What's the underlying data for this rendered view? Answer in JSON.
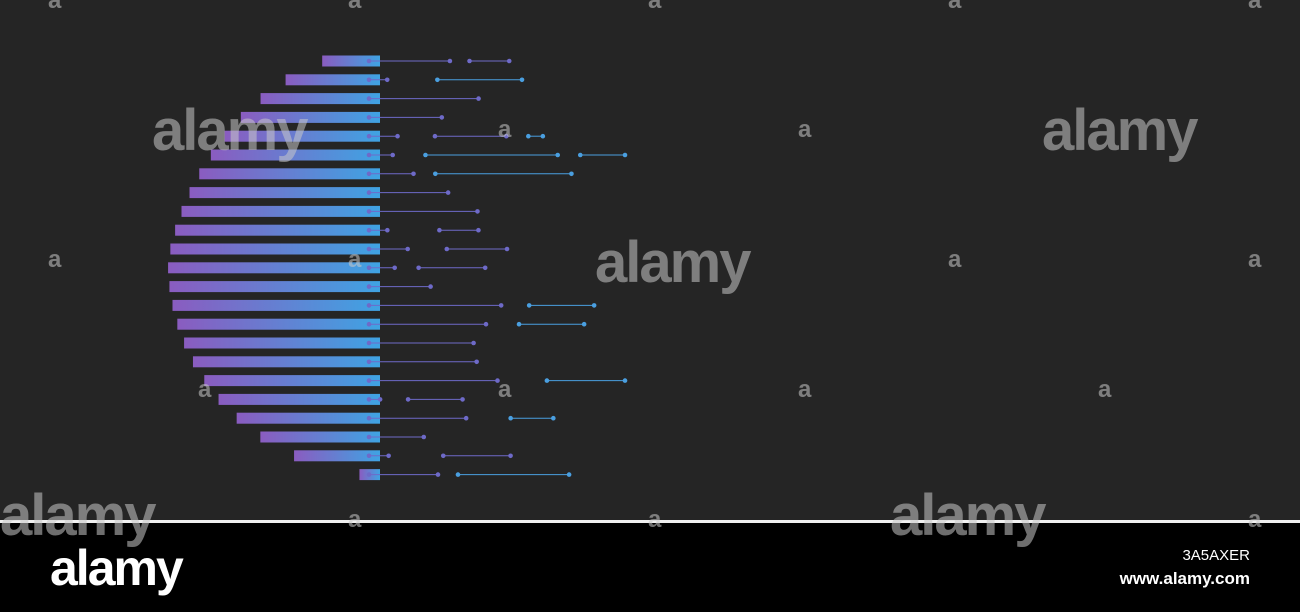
{
  "watermark": {
    "logo": "alamy",
    "letter": "a"
  },
  "footer": {
    "logo": "alamy",
    "image_id": "3A5AXER",
    "url": "www.alamy.com"
  }
}
